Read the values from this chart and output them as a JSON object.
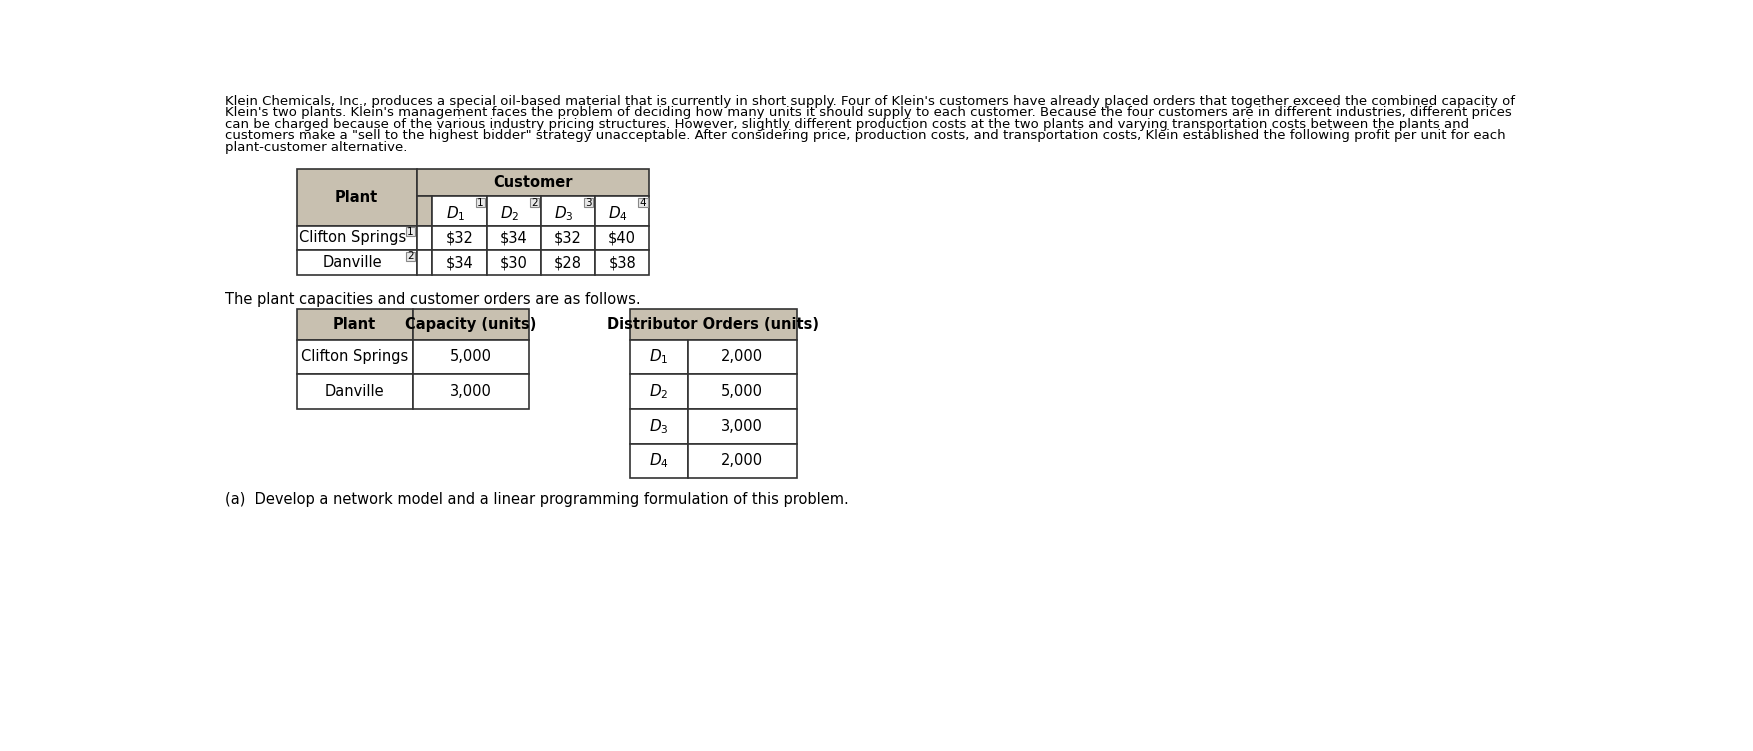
{
  "lines_para": [
    "Klein Chemicals, Inc., produces a special oil-based material that is currently in short supply. Four of Klein's customers have already placed orders that together exceed the combined capacity of",
    "Klein's two plants. Klein's management faces the problem of deciding how many units it should supply to each customer. Because the four customers are in different industries, different prices",
    "can be charged because of the various industry pricing structures. However, slightly different production costs at the two plants and varying transportation costs between the plants and",
    "customers make a \"sell to the highest bidder\" strategy unacceptable. After considering price, production costs, and transportation costs, Klein established the following profit per unit for each",
    "plant-customer alternative."
  ],
  "table1_title": "Customer",
  "table1_col_header": "Plant",
  "table1_subcol_nums": [
    "1",
    "2",
    "3",
    "4"
  ],
  "table1_rows": [
    {
      "plant": "Clifton Springs",
      "num": "1",
      "values": [
        "$32",
        "$34",
        "$32",
        "$40"
      ]
    },
    {
      "plant": "Danville",
      "num": "2",
      "values": [
        "$34",
        "$30",
        "$28",
        "$38"
      ]
    }
  ],
  "middle_text": "The plant capacities and customer orders are as follows.",
  "table2_headers": [
    "Plant",
    "Capacity (units)"
  ],
  "table2_rows": [
    [
      "Clifton Springs",
      "5,000"
    ],
    [
      "Danville",
      "3,000"
    ]
  ],
  "table3_header": "Distributor Orders (units)",
  "table3_rows": [
    [
      "D_1",
      "2,000"
    ],
    [
      "D_2",
      "5,000"
    ],
    [
      "D_3",
      "3,000"
    ],
    [
      "D_4",
      "2,000"
    ]
  ],
  "footer_text": "(a)  Develop a network model and a linear programming formulation of this problem.",
  "bg_color": "#ffffff",
  "text_color": "#000000",
  "header_bg": "#c8c0b0",
  "para_fs": 9.5,
  "table_fs": 10.5
}
